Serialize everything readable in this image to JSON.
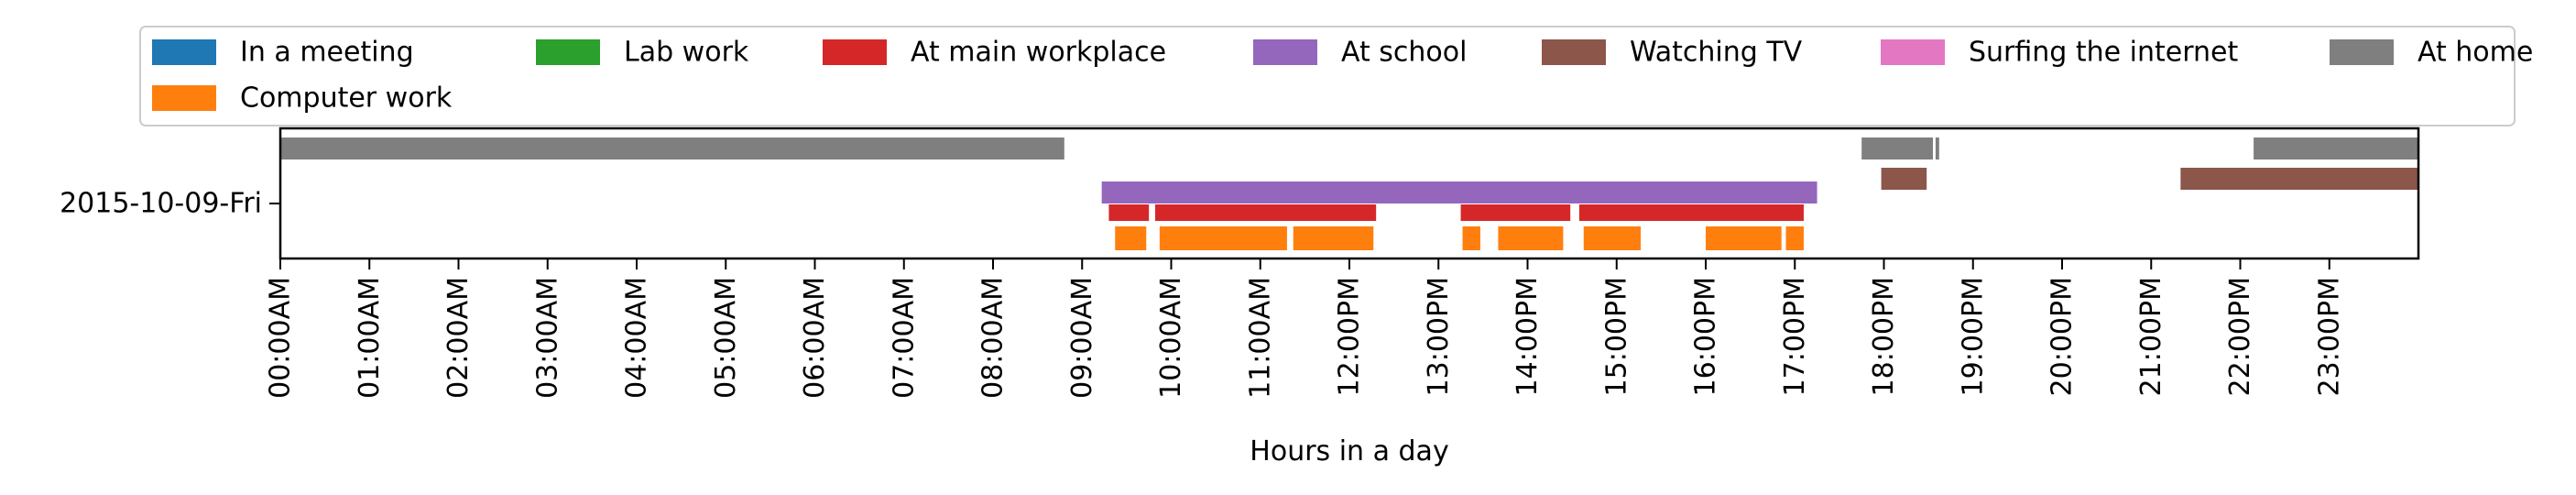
{
  "chart_data": {
    "type": "timeline",
    "xlabel": "Hours in a day",
    "ylabel": "",
    "xlim": [
      0,
      24
    ],
    "x_ticks": [
      {
        "hour": 0,
        "label": "00:00AM"
      },
      {
        "hour": 1,
        "label": "01:00AM"
      },
      {
        "hour": 2,
        "label": "02:00AM"
      },
      {
        "hour": 3,
        "label": "03:00AM"
      },
      {
        "hour": 4,
        "label": "04:00AM"
      },
      {
        "hour": 5,
        "label": "05:00AM"
      },
      {
        "hour": 6,
        "label": "06:00AM"
      },
      {
        "hour": 7,
        "label": "07:00AM"
      },
      {
        "hour": 8,
        "label": "08:00AM"
      },
      {
        "hour": 9,
        "label": "09:00AM"
      },
      {
        "hour": 10,
        "label": "10:00AM"
      },
      {
        "hour": 11,
        "label": "11:00AM"
      },
      {
        "hour": 12,
        "label": "12:00PM"
      },
      {
        "hour": 13,
        "label": "13:00PM"
      },
      {
        "hour": 14,
        "label": "14:00PM"
      },
      {
        "hour": 15,
        "label": "15:00PM"
      },
      {
        "hour": 16,
        "label": "16:00PM"
      },
      {
        "hour": 17,
        "label": "17:00PM"
      },
      {
        "hour": 18,
        "label": "18:00PM"
      },
      {
        "hour": 19,
        "label": "19:00PM"
      },
      {
        "hour": 20,
        "label": "20:00PM"
      },
      {
        "hour": 21,
        "label": "21:00PM"
      },
      {
        "hour": 22,
        "label": "22:00PM"
      },
      {
        "hour": 23,
        "label": "23:00PM"
      }
    ],
    "y_categories": [
      "2015-10-09-Fri"
    ],
    "grid": false,
    "legend": {
      "placement": "top",
      "entries": [
        {
          "name": "In a meeting",
          "color": "#1f77b4"
        },
        {
          "name": "Computer work",
          "color": "#ff7f0e"
        },
        {
          "name": "Lab work",
          "color": "#2ca02c"
        },
        {
          "name": "At main workplace",
          "color": "#d62728"
        },
        {
          "name": "At school",
          "color": "#9467bd"
        },
        {
          "name": "Watching TV",
          "color": "#8c564b"
        },
        {
          "name": "Surfing the internet",
          "color": "#e377c2"
        },
        {
          "name": "At home",
          "color": "#7f7f7f"
        }
      ]
    },
    "series": [
      {
        "name": "At home",
        "color": "#7f7f7f",
        "segments": [
          [
            0.0,
            8.8
          ],
          [
            17.75,
            18.55
          ],
          [
            18.58,
            18.62
          ],
          [
            22.15,
            24.0
          ]
        ]
      },
      {
        "name": "At school",
        "color": "#9467bd",
        "segments": [
          [
            9.22,
            17.25
          ]
        ]
      },
      {
        "name": "Watching TV",
        "color": "#8c564b",
        "segments": [
          [
            17.97,
            18.48
          ],
          [
            21.33,
            24.0
          ]
        ]
      },
      {
        "name": "At main workplace",
        "color": "#d62728",
        "segments": [
          [
            9.3,
            9.75
          ],
          [
            9.82,
            12.3
          ],
          [
            13.25,
            14.48
          ],
          [
            14.58,
            17.1
          ]
        ]
      },
      {
        "name": "Computer work",
        "color": "#ff7f0e",
        "segments": [
          [
            9.37,
            9.72
          ],
          [
            9.87,
            11.3
          ],
          [
            11.37,
            12.27
          ],
          [
            13.27,
            13.47
          ],
          [
            13.67,
            14.4
          ],
          [
            14.63,
            15.27
          ],
          [
            16.0,
            16.85
          ],
          [
            16.9,
            17.1
          ]
        ]
      }
    ]
  }
}
